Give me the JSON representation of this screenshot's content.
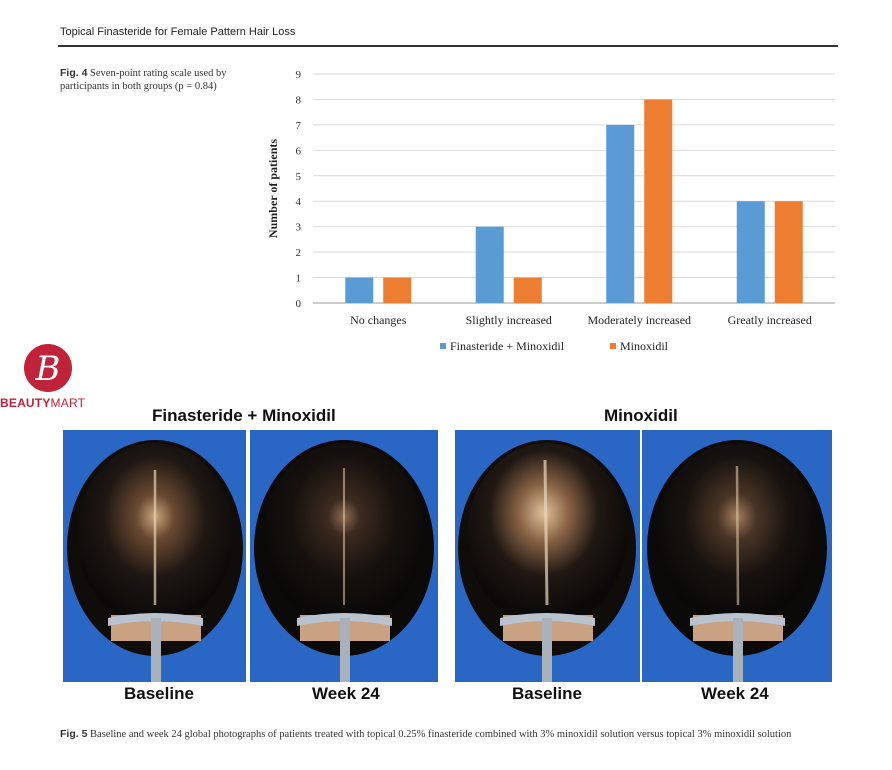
{
  "running_head": "Topical Finasteride for Female Pattern Hair Loss",
  "fig4": {
    "label": "Fig. 4",
    "caption": "Seven-point rating scale used by participants in both groups (p = 0.84)"
  },
  "chart_data": {
    "type": "bar",
    "categories": [
      "No changes",
      "Slightly increased",
      "Moderately increased",
      "Greatly increased"
    ],
    "series": [
      {
        "name": "Finasteride + Minoxidil",
        "values": [
          1,
          3,
          7,
          4
        ],
        "color": "#5b9bd5"
      },
      {
        "name": "Minoxidil",
        "values": [
          1,
          1,
          8,
          4
        ],
        "color": "#ed7d31"
      }
    ],
    "ylabel": "Number of patients",
    "xlabel": "",
    "ylim": [
      0,
      9
    ],
    "yticks": [
      "0",
      "1",
      "2",
      "3",
      "4",
      "5",
      "6",
      "7",
      "8",
      "9"
    ],
    "grid": true,
    "legend_position": "bottom"
  },
  "logo": {
    "text_bold": "BEAUTY",
    "text_light": "MART",
    "color": "#c0223a"
  },
  "fig5": {
    "groups": [
      "Finasteride + Minoxidil",
      "Minoxidil"
    ],
    "photo_labels": [
      "Baseline",
      "Week 24",
      "Baseline",
      "Week 24"
    ],
    "label": "Fig. 5",
    "caption": "Baseline and week 24 global photographs of patients treated with topical 0.25% finasteride combined with 3% minoxidil solution versus topical 3% minoxidil solution"
  }
}
